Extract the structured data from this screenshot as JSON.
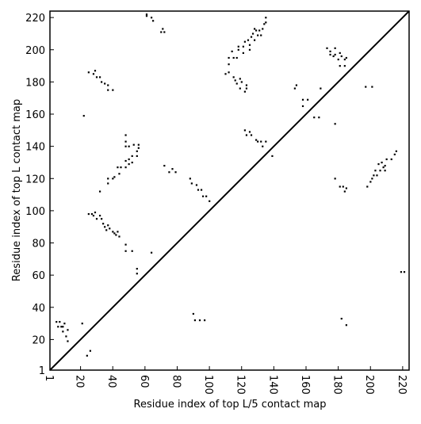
{
  "chart_data": {
    "type": "scatter",
    "xlabel": "Residue index of top L/5 contact map",
    "ylabel": "Residue index of top L contact map",
    "color": "#000000",
    "xlim": [
      1,
      224
    ],
    "ylim": [
      1,
      224
    ],
    "xticks": [
      1,
      20,
      40,
      60,
      80,
      100,
      120,
      140,
      160,
      180,
      200,
      220
    ],
    "yticks": [
      1,
      20,
      40,
      60,
      80,
      100,
      120,
      140,
      160,
      180,
      200,
      220
    ],
    "x": [
      61,
      61,
      64,
      65,
      70,
      71,
      72,
      110,
      112,
      112,
      112,
      114,
      115,
      115,
      116,
      117,
      117,
      118,
      118,
      119,
      119,
      120,
      121,
      121,
      122,
      122,
      123,
      123,
      124,
      125,
      125,
      126,
      127,
      128,
      128,
      129,
      130,
      131,
      132,
      133,
      134,
      135,
      135,
      122,
      123,
      125,
      126,
      129,
      130,
      132,
      133,
      135,
      139,
      153,
      154,
      158,
      158,
      161,
      165,
      168,
      169,
      178,
      173,
      175,
      175,
      177,
      178,
      178,
      180,
      181,
      181,
      182,
      184,
      184,
      185,
      197,
      201,
      22,
      25,
      28,
      29,
      30,
      32,
      33,
      35,
      37,
      37,
      40,
      48,
      48,
      48,
      50,
      53,
      55,
      56,
      56,
      55,
      52,
      50,
      48,
      48,
      50,
      52,
      45,
      43,
      41,
      37,
      37,
      40,
      44,
      32,
      25,
      27,
      29,
      28,
      30,
      32,
      33,
      34,
      35,
      37,
      36,
      38,
      40,
      41,
      42,
      43,
      44,
      48,
      48,
      52,
      55,
      55,
      64,
      72,
      75,
      77,
      79,
      88,
      89,
      92,
      93,
      95,
      96,
      98,
      100,
      5,
      7,
      6,
      8,
      9,
      10,
      9,
      12,
      11,
      12,
      21,
      24,
      26,
      90,
      91,
      94,
      97,
      182,
      185,
      178,
      181,
      183,
      184,
      185,
      198,
      200,
      201,
      202,
      203,
      204,
      205,
      206,
      207,
      208,
      209,
      209,
      210,
      213,
      215,
      216,
      219,
      221
    ],
    "values": [
      221,
      222,
      220,
      218,
      211,
      213,
      211,
      185,
      186,
      191,
      195,
      199,
      195,
      183,
      181,
      179,
      195,
      200,
      202,
      182,
      176,
      180,
      198,
      202,
      205,
      174,
      176,
      178,
      206,
      200,
      203,
      208,
      210,
      213,
      206,
      212,
      209,
      212,
      209,
      213,
      216,
      217,
      220,
      150,
      147,
      149,
      147,
      144,
      143,
      143,
      140,
      143,
      134,
      176,
      178,
      165,
      169,
      169,
      158,
      158,
      176,
      154,
      201,
      199,
      197,
      196,
      201,
      197,
      194,
      198,
      190,
      196,
      190,
      194,
      195,
      177,
      177,
      159,
      186,
      185,
      187,
      183,
      183,
      180,
      179,
      178,
      175,
      175,
      147,
      143,
      140,
      140,
      141,
      137,
      141,
      139,
      134,
      134,
      132,
      131,
      127,
      129,
      130,
      127,
      127,
      121,
      120,
      117,
      120,
      123,
      112,
      98,
      98,
      99,
      97,
      95,
      97,
      95,
      92,
      90,
      91,
      88,
      89,
      87,
      86,
      85,
      87,
      84,
      79,
      75,
      75,
      64,
      61,
      74,
      128,
      124,
      126,
      124,
      120,
      117,
      116,
      113,
      113,
      109,
      109,
      106,
      31,
      31,
      28,
      28,
      28,
      30,
      25,
      26,
      22,
      19,
      30,
      10,
      13,
      36,
      32,
      32,
      32,
      33,
      29,
      120,
      115,
      115,
      112,
      114,
      115,
      118,
      120,
      122,
      125,
      122,
      129,
      125,
      130,
      127,
      128,
      125,
      132,
      132,
      135,
      137,
      62,
      62
    ]
  }
}
